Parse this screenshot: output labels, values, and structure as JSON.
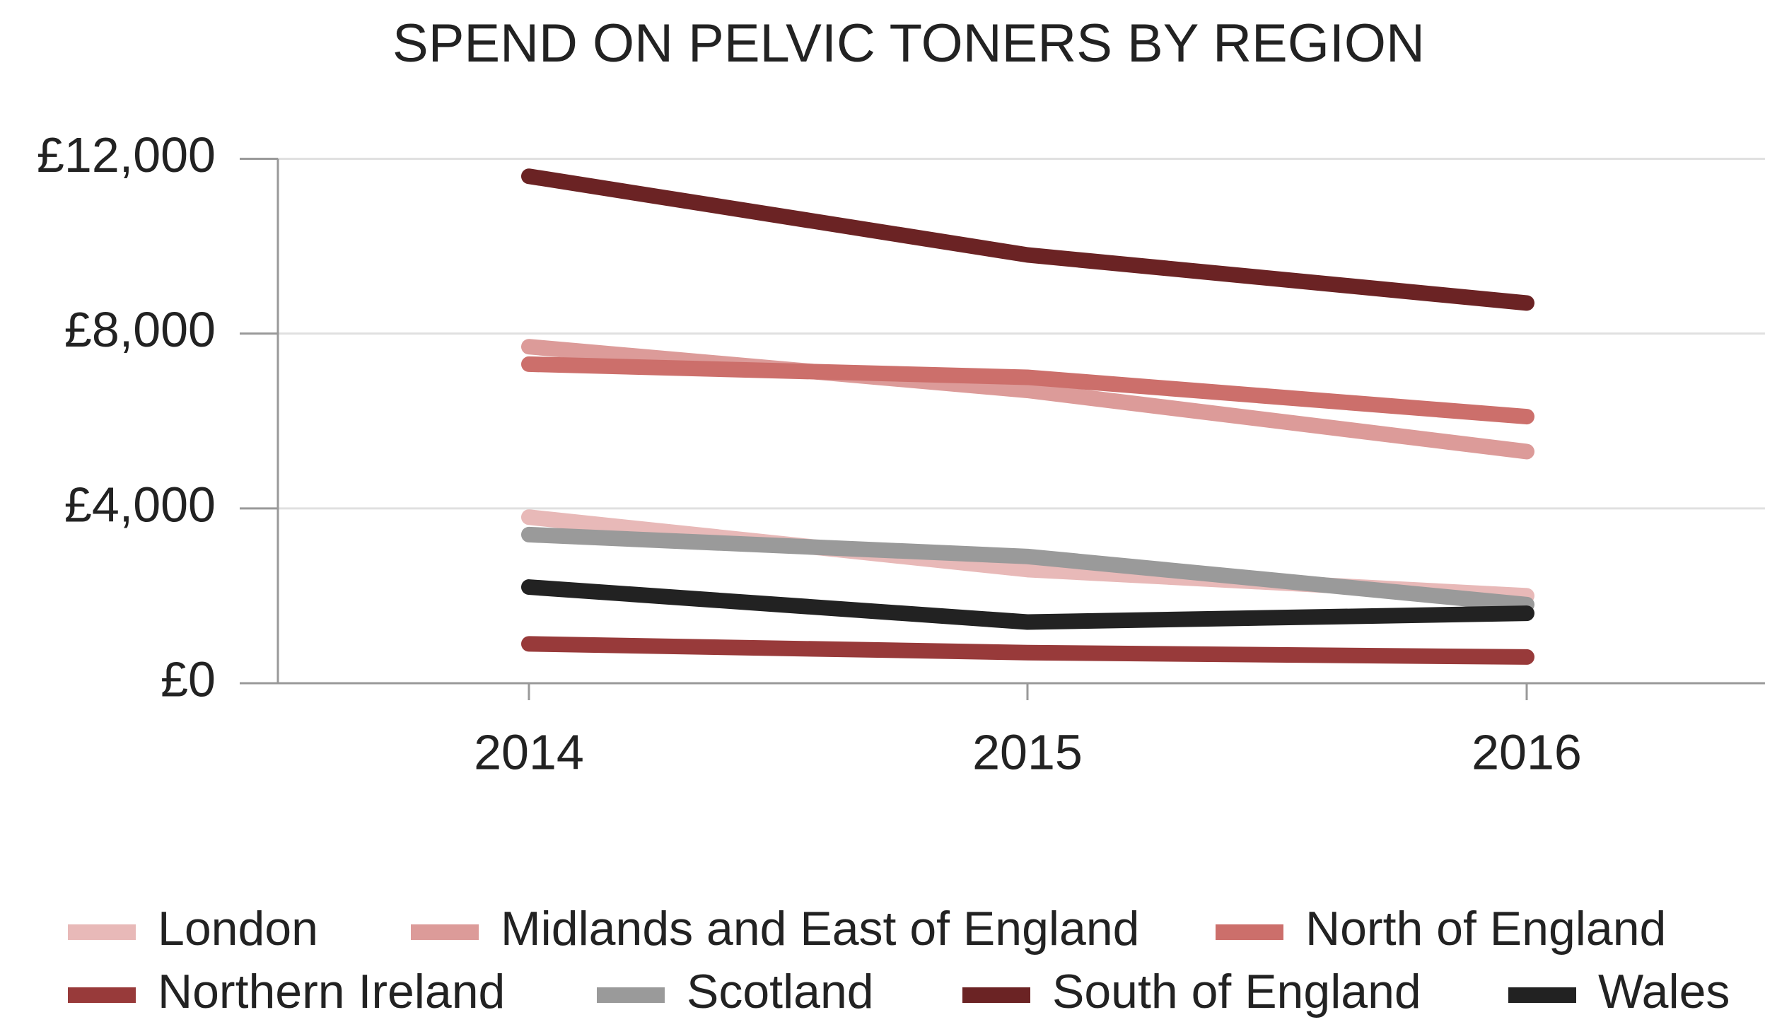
{
  "chart_data": {
    "type": "line",
    "title": "SPEND ON PELVIC TONERS BY REGION",
    "categories": [
      "2014",
      "2015",
      "2016"
    ],
    "series": [
      {
        "name": "London",
        "color": "#e8b9b8",
        "values": [
          3800,
          2600,
          2000
        ]
      },
      {
        "name": "Midlands and East of England",
        "color": "#dc9b99",
        "values": [
          7700,
          6700,
          5300
        ]
      },
      {
        "name": "North of England",
        "color": "#cc6f6b",
        "values": [
          7300,
          7000,
          6100
        ]
      },
      {
        "name": "Northern Ireland",
        "color": "#983a3a",
        "values": [
          900,
          700,
          600
        ]
      },
      {
        "name": "Scotland",
        "color": "#9a9a9a",
        "values": [
          3400,
          2900,
          1800
        ]
      },
      {
        "name": "South of England",
        "color": "#6b2324",
        "values": [
          11600,
          9800,
          8700
        ]
      },
      {
        "name": "Wales",
        "color": "#222222",
        "values": [
          2200,
          1400,
          1600
        ]
      }
    ],
    "ylim": [
      0,
      12000
    ],
    "yticks": [
      {
        "value": 0,
        "label": "£0"
      },
      {
        "value": 4000,
        "label": "£4,000"
      },
      {
        "value": 8000,
        "label": "£8,000"
      },
      {
        "value": 12000,
        "label": "£12,000"
      }
    ],
    "grid": true,
    "legend": "bottom"
  }
}
